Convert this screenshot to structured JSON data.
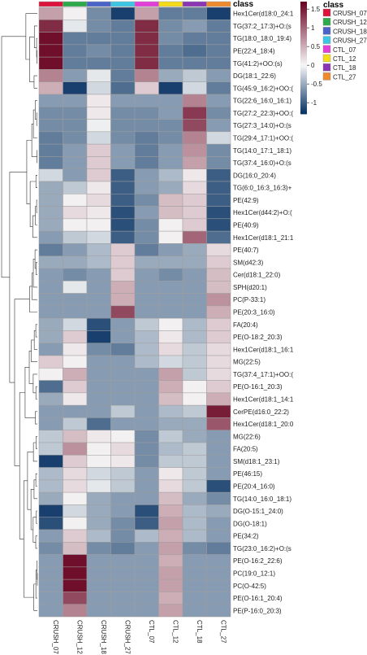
{
  "chart_data": {
    "type": "heatmap",
    "title": "",
    "xlabel": "",
    "ylabel": "",
    "columns": [
      "CRUSH_07",
      "CRUSH_12",
      "CRUSH_18",
      "CRUSH_27",
      "CTL_07",
      "CTL_12",
      "CTL_18",
      "CTL_27"
    ],
    "rows": [
      "Hex1Cer(d18:0_24:1",
      "TG(37:2_17:3)+O:(s",
      "TG(18:0_18:0_19:4)",
      "PE(22:4_18:4)",
      "TG(41:2)+OO:(s)",
      "DG(18:1_22:6)",
      "TG(45:9_16:2)+OO:(",
      "TG(22:6_16:0_16:1)",
      "TG(27:2_22:3)+OO:(",
      "TG(27:3_14:0)+O:(s",
      "TG(29:4_17:1)+OO:(",
      "TG(14:0_17:1_18:1)",
      "TG(37:4_16:0)+O:(s",
      "DG(16:0_20:4)",
      "TG(6:0_16:3_16:3)+",
      "PE(42:9)",
      "Hex1Cer(d44:2)+O:(",
      "PE(40:9)",
      "Hex1Cer(d18:1_21:1",
      "PE(40:7)",
      "SM(d42:3)",
      "Cer(d18:1_22:0)",
      "SPH(d20:1)",
      "PC(P-33:1)",
      "PE(20:3_16:0)",
      "FA(20:4)",
      "PE(O-18:2_20:3)",
      "Hex1Cer(d18:1_16:1",
      "MG(22:5)",
      "TG(37:4_17:1)+OO:(",
      "PE(O-16:1_20:3)",
      "Hex1Cer(d18:1_14:1",
      "CerPE(d16:0_22:2)",
      "Hex1Cer(d18:1_20:0",
      "MG(22:6)",
      "FA(20:5)",
      "SM(d18:1_23:1)",
      "PE(46:15)",
      "PE(20:4_16:0)",
      "TG(14:0_16:0_18:1)",
      "DG(O-15:1_24:0)",
      "DG(O-18:1)",
      "PE(34:2)",
      "TG(23:0_16:2)+O:(s",
      "PE(O-16:2_22:6)",
      "PC(19:0_12:1)",
      "PC(O-42:5)",
      "PE(O-16:1_20:4)",
      "PE(P-16:0_20:3)"
    ],
    "values": [
      [
        0.6,
        0.05,
        -0.7,
        -1.2,
        0.6,
        -0.8,
        -0.8,
        -1.2
      ],
      [
        1.4,
        -0.1,
        -0.7,
        -0.8,
        1.4,
        -0.7,
        -0.6,
        -0.8
      ],
      [
        1.6,
        -0.8,
        -0.8,
        -0.8,
        1.4,
        -0.7,
        -0.8,
        -0.8
      ],
      [
        1.6,
        -0.8,
        -0.7,
        -0.8,
        1.4,
        -0.8,
        -0.9,
        -0.8
      ],
      [
        1.6,
        -0.8,
        -0.8,
        -0.8,
        1.4,
        -0.8,
        -0.8,
        -0.8
      ],
      [
        0.8,
        -0.6,
        -0.1,
        -0.8,
        0.8,
        -0.5,
        -0.3,
        -0.6
      ],
      [
        0.5,
        -1.2,
        -0.2,
        -0.9,
        0.3,
        -1.2,
        -0.2,
        -0.8
      ],
      [
        -0.6,
        -0.6,
        0.1,
        -0.6,
        -0.6,
        -0.6,
        0.8,
        -0.6
      ],
      [
        -0.7,
        -0.7,
        0.1,
        -0.7,
        -0.7,
        -0.6,
        1.3,
        -0.7
      ],
      [
        -0.7,
        -0.7,
        -0.05,
        -0.7,
        -0.7,
        -0.7,
        1.2,
        -0.6
      ],
      [
        -0.8,
        -0.7,
        -0.2,
        -0.7,
        -0.8,
        -0.7,
        0.8,
        -0.2
      ],
      [
        -0.8,
        -0.6,
        0.3,
        -0.6,
        -0.8,
        -0.6,
        0.7,
        -0.7
      ],
      [
        -0.8,
        -0.6,
        0.3,
        -0.6,
        -0.8,
        -0.6,
        0.6,
        -0.7
      ],
      [
        -0.2,
        -0.6,
        0.3,
        -1.0,
        -0.6,
        -0.4,
        0.1,
        -1.0
      ],
      [
        -0.5,
        -0.3,
        0.1,
        -1.0,
        -0.6,
        -0.5,
        0.2,
        -1.0
      ],
      [
        -0.5,
        0.05,
        0.2,
        -1.0,
        -0.7,
        0.4,
        0.3,
        -1.0
      ],
      [
        -0.5,
        0.2,
        0.1,
        -1.1,
        -0.6,
        0.4,
        0.3,
        -1.1
      ],
      [
        -0.5,
        0.05,
        0.05,
        -1.1,
        -0.7,
        0.05,
        0.3,
        -1.1
      ],
      [
        -0.6,
        -0.3,
        -0.2,
        -1.0,
        -0.7,
        0.05,
        1.0,
        -0.9
      ],
      [
        -0.8,
        -0.6,
        -0.4,
        0.3,
        -0.8,
        -0.6,
        -0.5,
        0.2
      ],
      [
        -0.5,
        -0.5,
        -0.4,
        0.3,
        -0.5,
        -0.5,
        -0.5,
        0.3
      ],
      [
        -0.6,
        -0.7,
        -0.6,
        0.3,
        -0.6,
        -0.7,
        -0.6,
        0.4
      ],
      [
        -0.6,
        -0.1,
        -0.6,
        0.5,
        -0.6,
        -0.6,
        -0.6,
        0.4
      ],
      [
        -0.6,
        -0.6,
        -0.6,
        0.5,
        -0.6,
        -0.6,
        -0.6,
        0.7
      ],
      [
        -0.6,
        -0.6,
        -0.6,
        1.2,
        -0.6,
        -0.6,
        -0.6,
        0.5
      ],
      [
        -0.5,
        -0.2,
        -1.1,
        -0.6,
        -0.3,
        0.05,
        -0.4,
        0.3
      ],
      [
        -0.5,
        0.3,
        -1.2,
        -0.6,
        -0.4,
        0.1,
        -0.4,
        0.3
      ],
      [
        -0.6,
        0.1,
        -0.7,
        -0.8,
        -0.4,
        0.2,
        -0.3,
        0.2
      ],
      [
        0.3,
        0.05,
        -0.6,
        -0.6,
        -0.4,
        -0.2,
        -0.3,
        0.2
      ],
      [
        0.05,
        0.5,
        -0.6,
        -0.6,
        -0.6,
        0.6,
        -0.3,
        0.2
      ],
      [
        -0.9,
        0.3,
        -0.6,
        -0.6,
        -0.6,
        0.5,
        0.05,
        0.3
      ],
      [
        -0.5,
        0.1,
        -0.6,
        -0.6,
        -0.6,
        0.4,
        0.05,
        0.5
      ],
      [
        -0.6,
        -0.6,
        -0.6,
        -0.3,
        -0.6,
        -0.4,
        -0.3,
        1.5
      ],
      [
        -0.6,
        -0.3,
        -0.9,
        -0.6,
        -0.6,
        -0.5,
        -0.5,
        1.1
      ],
      [
        -0.3,
        0.4,
        0.1,
        0.05,
        -0.7,
        -0.3,
        -0.5,
        -0.6
      ],
      [
        -0.3,
        0.7,
        0.05,
        0.2,
        -0.7,
        -0.4,
        -0.3,
        -0.6
      ],
      [
        -1.2,
        0.3,
        0.05,
        0.1,
        -0.7,
        -0.3,
        -0.3,
        -0.6
      ],
      [
        -0.4,
        0.2,
        -0.2,
        -0.3,
        -0.6,
        0.1,
        -0.3,
        -0.6
      ],
      [
        -0.4,
        0.2,
        -0.1,
        -0.3,
        -0.6,
        0.2,
        -0.3,
        -1.1
      ],
      [
        -0.5,
        0.05,
        -0.5,
        -0.6,
        -0.6,
        0.4,
        -0.5,
        -0.7
      ],
      [
        -1.2,
        -0.2,
        -0.5,
        -0.6,
        -1.1,
        0.5,
        -0.4,
        -0.5
      ],
      [
        -1.1,
        0.05,
        -0.5,
        -0.7,
        -1.0,
        0.6,
        -0.4,
        -0.6
      ],
      [
        -0.6,
        0.3,
        -0.4,
        -0.7,
        -0.4,
        0.5,
        -0.4,
        -0.6
      ],
      [
        -0.7,
        0.4,
        -0.7,
        -0.8,
        -0.6,
        0.6,
        -0.7,
        -0.8
      ],
      [
        -0.6,
        1.6,
        -0.6,
        -0.6,
        -0.6,
        0.5,
        -0.6,
        -0.6
      ],
      [
        -0.6,
        1.6,
        -0.6,
        -0.6,
        -0.6,
        0.6,
        -0.6,
        -0.6
      ],
      [
        -0.6,
        1.6,
        -0.6,
        -0.6,
        -0.6,
        0.6,
        -0.6,
        -0.6
      ],
      [
        -0.6,
        1.2,
        -0.6,
        -0.6,
        -0.6,
        0.5,
        -0.6,
        -0.6
      ],
      [
        -0.6,
        0.8,
        -0.6,
        -0.6,
        -0.6,
        0.6,
        -0.6,
        -0.6
      ]
    ],
    "class_bar_label": "class",
    "groups": [
      {
        "name": "CRUSH_07",
        "color": "#dc143c"
      },
      {
        "name": "CRUSH_12",
        "color": "#2eaa4a"
      },
      {
        "name": "CRUSH_18",
        "color": "#4963c8"
      },
      {
        "name": "CRUSH_27",
        "color": "#3dc6e4"
      },
      {
        "name": "CTL_07",
        "color": "#e23fd6"
      },
      {
        "name": "CTL_12",
        "color": "#f4dc1a"
      },
      {
        "name": "CTL_18",
        "color": "#8a35b4"
      },
      {
        "name": "CTL_27",
        "color": "#ee8a2c"
      }
    ],
    "legend_title": "class",
    "legend_placement": "top-right",
    "colorbar_ticks": [
      1.5,
      1,
      0.5,
      0,
      -0.5,
      -1
    ],
    "colorbar_range": [
      -1.3,
      1.7
    ],
    "color_scale": {
      "low": "#053061",
      "mid": "#f7f7f7",
      "high": "#67001f"
    },
    "row_dendrogram": "left"
  }
}
